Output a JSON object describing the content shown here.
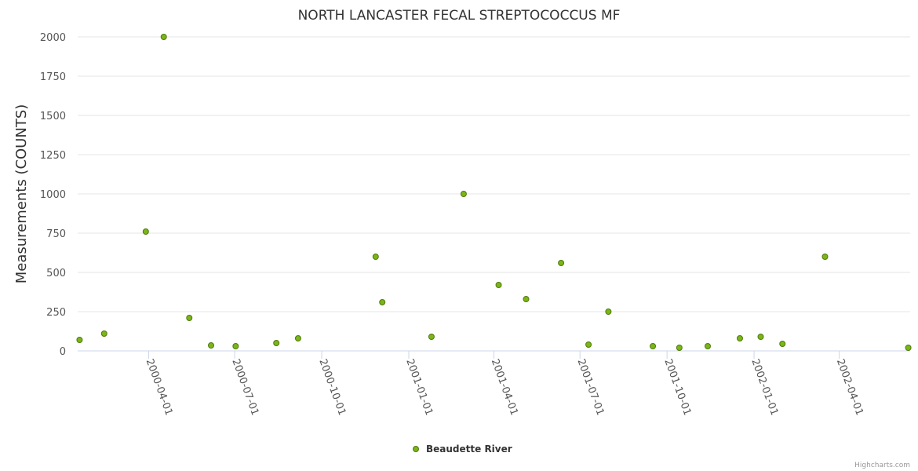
{
  "chart_data": {
    "type": "scatter",
    "title": "NORTH LANCASTER FECAL STREPTOCOCCUS MF",
    "xlabel": "",
    "ylabel": "Measurements (COUNTS)",
    "ylim": [
      0,
      2000
    ],
    "yticks": [
      0,
      250,
      500,
      750,
      1000,
      1250,
      1500,
      1750,
      2000
    ],
    "xlim": [
      "2000-01-17",
      "2002-06-15"
    ],
    "xticks": [
      "2000-04-01",
      "2000-07-01",
      "2000-10-01",
      "2001-01-01",
      "2001-04-01",
      "2001-07-01",
      "2001-10-01",
      "2002-01-01",
      "2002-04-01"
    ],
    "grid": true,
    "legend_position": "bottom-center",
    "series": [
      {
        "name": "Beaudette River",
        "color": "#7cb518",
        "points": [
          {
            "x": "2000-01-19",
            "y": 70
          },
          {
            "x": "2000-02-14",
            "y": 110
          },
          {
            "x": "2000-03-29",
            "y": 760
          },
          {
            "x": "2000-04-17",
            "y": 2000
          },
          {
            "x": "2000-05-14",
            "y": 210
          },
          {
            "x": "2000-06-06",
            "y": 35
          },
          {
            "x": "2000-07-02",
            "y": 30
          },
          {
            "x": "2000-08-14",
            "y": 50
          },
          {
            "x": "2000-09-06",
            "y": 80
          },
          {
            "x": "2000-11-27",
            "y": 600
          },
          {
            "x": "2000-12-04",
            "y": 310
          },
          {
            "x": "2001-01-25",
            "y": 90
          },
          {
            "x": "2001-02-28",
            "y": 1000
          },
          {
            "x": "2001-04-06",
            "y": 420
          },
          {
            "x": "2001-05-05",
            "y": 330
          },
          {
            "x": "2001-06-11",
            "y": 560
          },
          {
            "x": "2001-07-10",
            "y": 40
          },
          {
            "x": "2001-07-31",
            "y": 250
          },
          {
            "x": "2001-09-16",
            "y": 30
          },
          {
            "x": "2001-10-14",
            "y": 20
          },
          {
            "x": "2001-11-13",
            "y": 30
          },
          {
            "x": "2001-12-17",
            "y": 80
          },
          {
            "x": "2002-01-08",
            "y": 90
          },
          {
            "x": "2002-01-31",
            "y": 45
          },
          {
            "x": "2002-03-17",
            "y": 600
          },
          {
            "x": "2002-06-13",
            "y": 20
          }
        ]
      }
    ]
  },
  "credits": "Highcharts.com"
}
